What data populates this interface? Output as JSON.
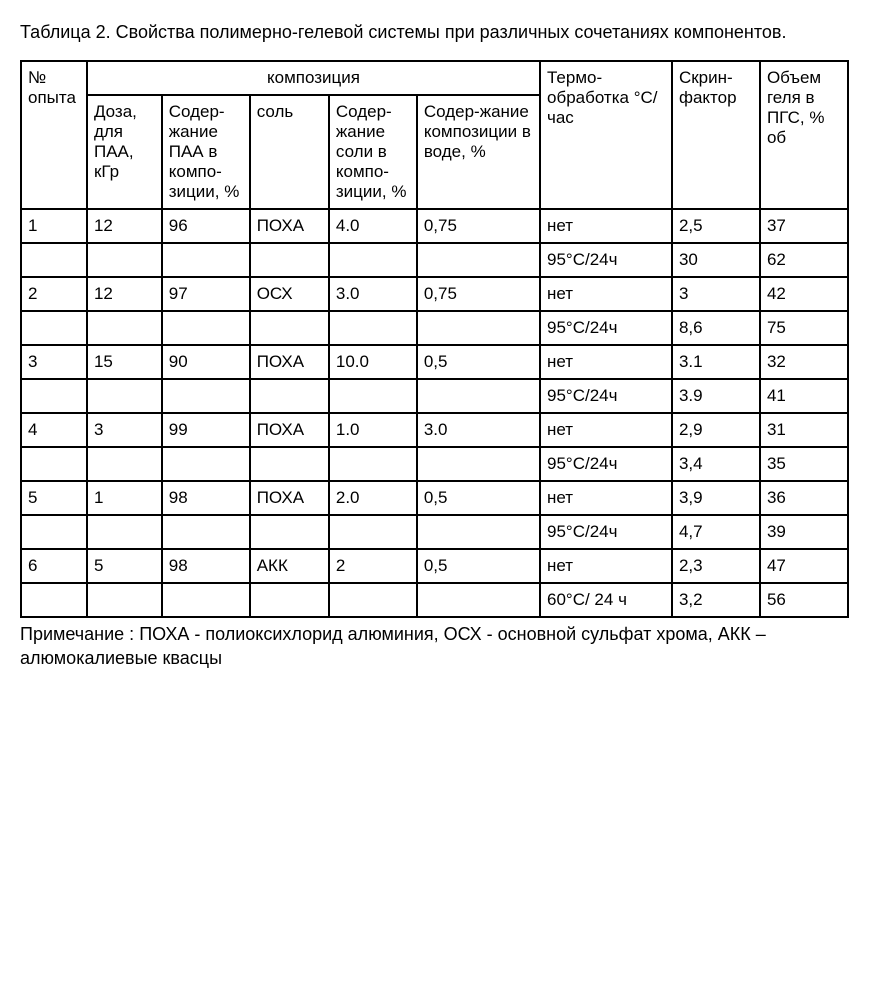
{
  "title": "Таблица 2.  Свойства  полимерно-гелевой системы при различных сочетаниях компонентов.",
  "headers": {
    "opyta": "№ опыта",
    "kompoziciya": "композиция",
    "doza": "Доза, для ПАА, кГр",
    "soderzhanie_paa": "Содер-жание ПАА в компо-зиции, %",
    "sol": "соль",
    "soderzhanie_soli": "Содер-жание соли в компо-зиции, %",
    "soderzhanie_komp": "Содер-жание композиции в воде, %",
    "termo": "Термо-обработка °C/час",
    "skrin": "Скрин-фактор",
    "obem": "Объем геля в ПГС, % об"
  },
  "rows": [
    {
      "n": "1",
      "doza": "12",
      "paa": "96",
      "sol": "ПОХА",
      "soli": "4.0",
      "komp": "0,75",
      "termo": "нет",
      "skrin": "2,5",
      "obem": "37"
    },
    {
      "n": "",
      "doza": "",
      "paa": "",
      "sol": "",
      "soli": "",
      "komp": "",
      "termo": "95°C/24ч",
      "skrin": "30",
      "obem": "62"
    },
    {
      "n": "2",
      "doza": "12",
      "paa": "97",
      "sol": "ОСХ",
      "soli": "3.0",
      "komp": "0,75",
      "termo": "нет",
      "skrin": "3",
      "obem": "42"
    },
    {
      "n": "",
      "doza": "",
      "paa": "",
      "sol": "",
      "soli": "",
      "komp": "",
      "termo": "95°C/24ч",
      "skrin": "8,6",
      "obem": "75"
    },
    {
      "n": "3",
      "doza": "15",
      "paa": "90",
      "sol": "ПОХА",
      "soli": "10.0",
      "komp": "0,5",
      "termo": "нет",
      "skrin": "3.1",
      "obem": "32"
    },
    {
      "n": "",
      "doza": "",
      "paa": "",
      "sol": "",
      "soli": "",
      "komp": "",
      "termo": "95°C/24ч",
      "skrin": "3.9",
      "obem": "41"
    },
    {
      "n": "4",
      "doza": "3",
      "paa": "99",
      "sol": "ПОХА",
      "soli": "1.0",
      "komp": "3.0",
      "termo": "нет",
      "skrin": "2,9",
      "obem": "31"
    },
    {
      "n": "",
      "doza": "",
      "paa": "",
      "sol": "",
      "soli": "",
      "komp": "",
      "termo": "95°C/24ч",
      "skrin": "3,4",
      "obem": "35"
    },
    {
      "n": "5",
      "doza": "1",
      "paa": "98",
      "sol": "ПОХА",
      "soli": "2.0",
      "komp": "0,5",
      "termo": "нет",
      "skrin": "3,9",
      "obem": "36"
    },
    {
      "n": "",
      "doza": "",
      "paa": "",
      "sol": "",
      "soli": "",
      "komp": "",
      "termo": "95°C/24ч",
      "skrin": "4,7",
      "obem": "39"
    },
    {
      "n": "6",
      "doza": "5",
      "paa": "98",
      "sol": "АКК",
      "soli": "2",
      "komp": "0,5",
      "termo": "нет",
      "skrin": "2,3",
      "obem": "47"
    },
    {
      "n": "",
      "doza": "",
      "paa": "",
      "sol": "",
      "soli": "",
      "komp": "",
      "termo": "60°C/ 24 ч",
      "skrin": "3,2",
      "obem": "56"
    }
  ],
  "note": "Примечание : ПОХА -   полиоксихлорид алюминия,  ОСХ  - основной сульфат хрома, АКК –алюмокалиевые квасцы"
}
